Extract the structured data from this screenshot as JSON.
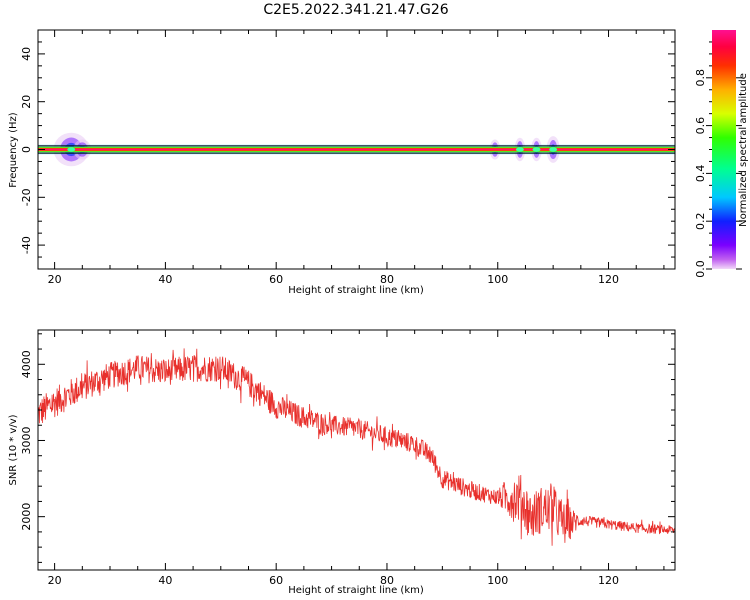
{
  "title": "C2E5.2022.341.21.47.G26",
  "chart_data": [
    {
      "type": "heatmap",
      "xlabel": "Height of straight line (km)",
      "ylabel": "Frequency (Hz)",
      "xlim": [
        17,
        132
      ],
      "ylim": [
        -50,
        50
      ],
      "xticks": [
        20,
        40,
        60,
        80,
        100,
        120
      ],
      "yticks": [
        -40,
        -20,
        0,
        20,
        40
      ],
      "colorbar": {
        "label": "Normalized spectral amplitude",
        "range": [
          0,
          1
        ],
        "ticks": [
          "0.0",
          "0.2",
          "0.4",
          "0.6",
          "0.8"
        ],
        "colormap": "gist_rainbow reversed (violet -> blue -> cyan -> green -> yellow -> orange -> red -> magenta)"
      },
      "band": {
        "frequency_center": 0,
        "frequency_halfwidth_peak": 1.5,
        "frequency_bracket": [
          -1.5,
          1.5
        ]
      },
      "blobs": [
        {
          "x": 23,
          "halfwidth_hz": 5,
          "x_span_km": 4
        },
        {
          "x": 25,
          "halfwidth_hz": 3,
          "x_span_km": 2
        },
        {
          "x": 99.5,
          "halfwidth_hz": 3,
          "x_span_km": 1.2
        },
        {
          "x": 104,
          "halfwidth_hz": 3.5,
          "x_span_km": 1.2
        },
        {
          "x": 107,
          "halfwidth_hz": 3.5,
          "x_span_km": 1.2
        },
        {
          "x": 110,
          "halfwidth_hz": 4,
          "x_span_km": 1.5
        }
      ]
    },
    {
      "type": "line",
      "xlabel": "Height of straight line (km)",
      "ylabel": "SNR (10 * v/v)",
      "xlim": [
        17,
        132
      ],
      "ylim": [
        1300,
        4450
      ],
      "xticks": [
        20,
        40,
        60,
        80,
        100,
        120
      ],
      "yticks": [
        2000,
        3000,
        4000
      ],
      "color": "#e8302c",
      "series": [
        {
          "trend_x": [
            17,
            20,
            25,
            30,
            35,
            40,
            45,
            50,
            55,
            60,
            65,
            70,
            75,
            80,
            85,
            88,
            90,
            95,
            100,
            104,
            106,
            108,
            110,
            112,
            115,
            120,
            125,
            132
          ],
          "trend_y": [
            3350,
            3500,
            3700,
            3850,
            3950,
            3900,
            3950,
            3950,
            3750,
            3450,
            3300,
            3200,
            3150,
            3050,
            2950,
            2800,
            2500,
            2350,
            2250,
            2250,
            2000,
            2100,
            2100,
            1900,
            1950,
            1900,
            1850,
            1820
          ],
          "noise_amplitude_x": [
            17,
            30,
            55,
            70,
            88,
            100,
            103,
            112,
            115,
            132
          ],
          "noise_amplitude_y": [
            350,
            300,
            300,
            220,
            220,
            180,
            550,
            500,
            120,
            100
          ]
        }
      ]
    }
  ]
}
